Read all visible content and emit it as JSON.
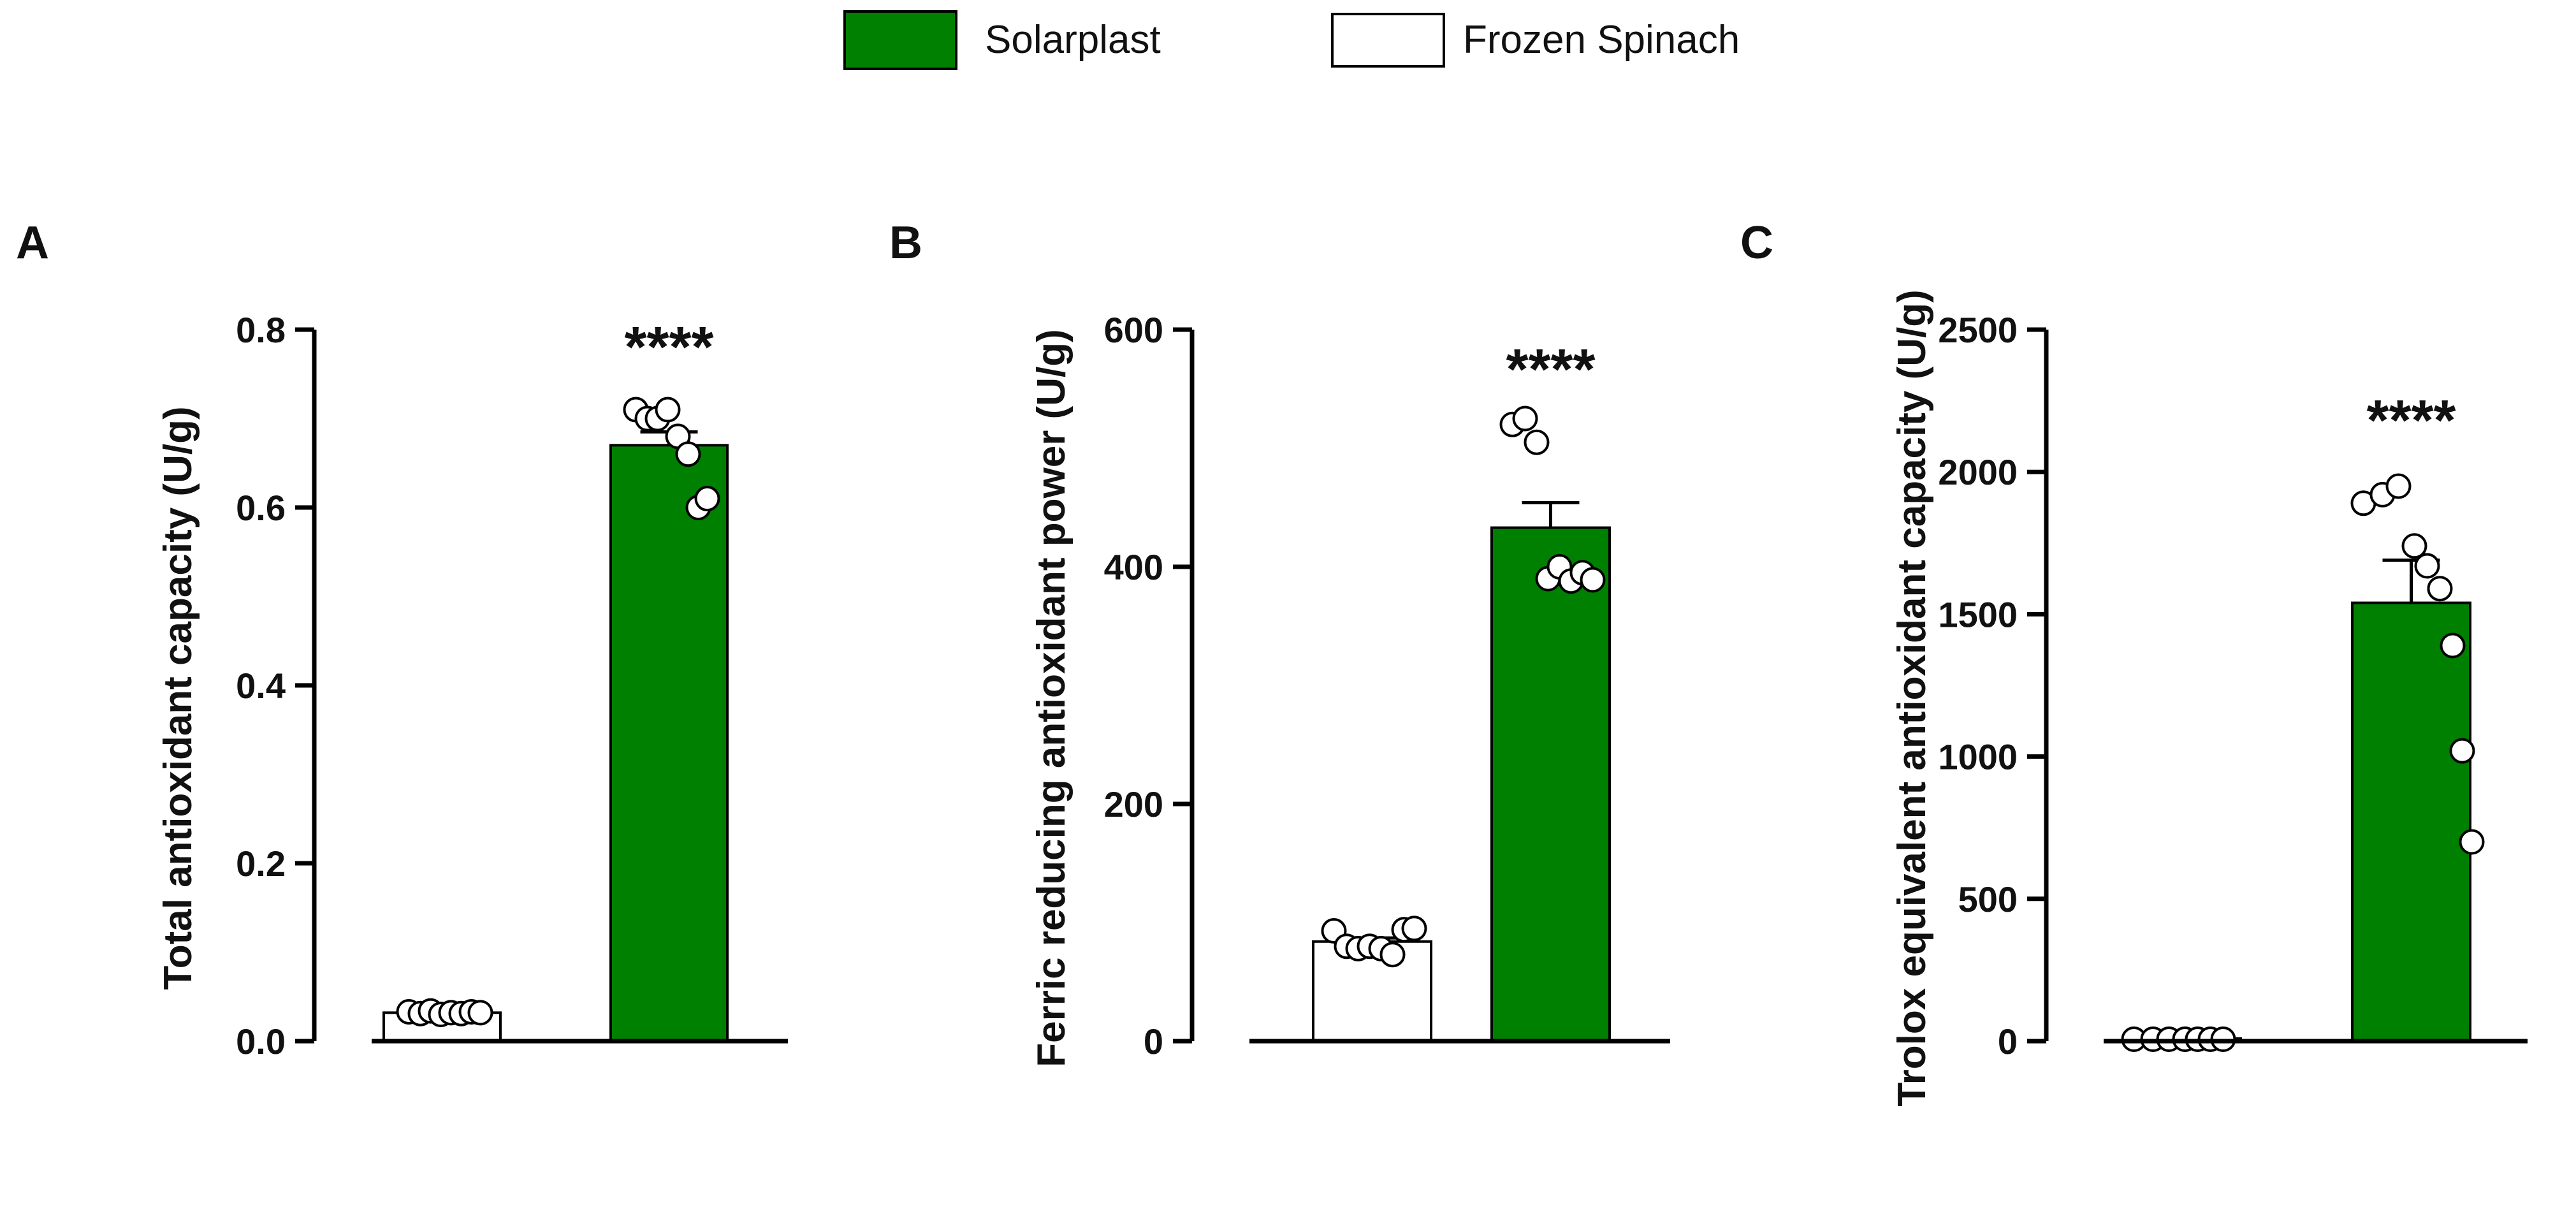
{
  "legend": {
    "items": [
      {
        "label": "Solarplast",
        "fill": "#008000"
      },
      {
        "label": "Frozen Spinach",
        "fill": "#ffffff"
      }
    ]
  },
  "colors": {
    "solarplast": "#008000",
    "spinach": "#ffffff",
    "stroke": "#000000"
  },
  "chart_data": [
    {
      "type": "bar",
      "panel": "A",
      "ylabel": "Total antioxidant capacity (U/g)",
      "ylim": [
        0,
        0.8
      ],
      "yticks": [
        0.0,
        0.2,
        0.4,
        0.6,
        0.8
      ],
      "ytick_labels": [
        "0.0",
        "0.2",
        "0.4",
        "0.6",
        "0.8"
      ],
      "categories": [
        "Frozen Spinach",
        "Solarplast"
      ],
      "series": [
        {
          "name": "Frozen Spinach",
          "mean": 0.032,
          "sem": 0.002,
          "points": [
            0.033,
            0.031,
            0.034,
            0.03,
            0.032,
            0.031,
            0.033,
            0.032
          ]
        },
        {
          "name": "Solarplast",
          "mean": 0.67,
          "sem": 0.015,
          "significance": "****",
          "points": [
            0.71,
            0.7,
            0.7,
            0.71,
            0.68,
            0.66,
            0.6,
            0.61
          ]
        }
      ]
    },
    {
      "type": "bar",
      "panel": "B",
      "ylabel": "Ferric reducing antioxidant power (U/g)",
      "ylim": [
        0,
        600
      ],
      "yticks": [
        0,
        200,
        400,
        600
      ],
      "ytick_labels": [
        "0",
        "200",
        "400",
        "600"
      ],
      "categories": [
        "Frozen Spinach",
        "Solarplast"
      ],
      "series": [
        {
          "name": "Frozen Spinach",
          "mean": 84,
          "sem": 3,
          "points": [
            93,
            80,
            78,
            80,
            78,
            73,
            94,
            95
          ]
        },
        {
          "name": "Solarplast",
          "mean": 433,
          "sem": 21,
          "significance": "****",
          "points": [
            520,
            525,
            505,
            390,
            400,
            388,
            395,
            389
          ]
        }
      ]
    },
    {
      "type": "bar",
      "panel": "C",
      "ylabel": "Trolox equivalent antioxidant capacity (U/g)",
      "ylim": [
        0,
        2500
      ],
      "yticks": [
        0,
        500,
        1000,
        1500,
        2000,
        2500
      ],
      "ytick_labels": [
        "0",
        "500",
        "1000",
        "1500",
        "2000",
        "2500"
      ],
      "categories": [
        "Frozen Spinach",
        "Solarplast"
      ],
      "series": [
        {
          "name": "Frozen Spinach",
          "mean": 0,
          "sem": 0,
          "points": [
            0,
            0,
            0,
            0,
            0,
            0,
            0
          ]
        },
        {
          "name": "Solarplast",
          "mean": 1540,
          "sem": 150,
          "significance": "****",
          "points": [
            1890,
            1920,
            1950,
            1740,
            1670,
            1590,
            1390,
            1020,
            700
          ]
        }
      ]
    }
  ]
}
